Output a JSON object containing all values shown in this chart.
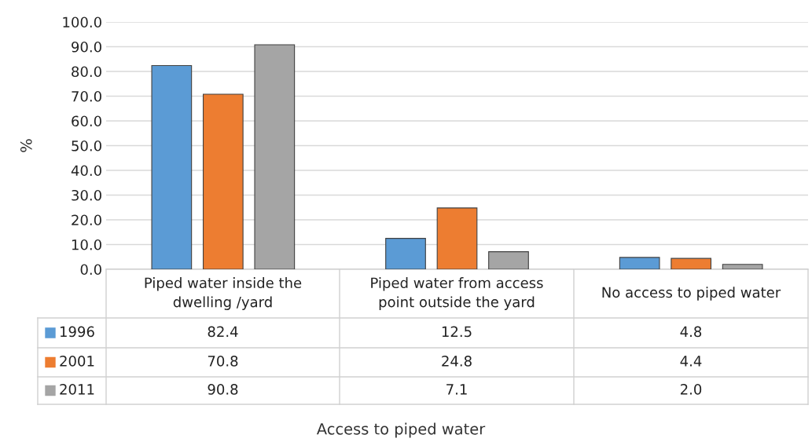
{
  "chart_data": {
    "type": "bar",
    "ylabel": "%",
    "annotations": [
      "Access to piped water"
    ],
    "categories": [
      "Piped water inside the\ndwelling /yard",
      "Piped water from access\npoint outside the yard",
      "No access to piped water"
    ],
    "series": [
      {
        "name": "1996",
        "color": "#5b9bd5",
        "values": [
          82.4,
          12.5,
          4.8
        ],
        "value_labels": [
          "82.4",
          "12.5",
          "4.8"
        ]
      },
      {
        "name": "2001",
        "color": "#ed7d31",
        "values": [
          70.8,
          24.8,
          4.4
        ],
        "value_labels": [
          "70.8",
          "24.8",
          "4.4"
        ]
      },
      {
        "name": "2011",
        "color": "#a5a5a5",
        "values": [
          90.8,
          7.1,
          2.0
        ],
        "value_labels": [
          "90.8",
          "7.1",
          "2.0"
        ]
      }
    ],
    "ylim": [
      0,
      100
    ],
    "yticks": [
      {
        "value": 0,
        "label": "0.0"
      },
      {
        "value": 10,
        "label": "10.0"
      },
      {
        "value": 20,
        "label": "20.0"
      },
      {
        "value": 30,
        "label": "30.0"
      },
      {
        "value": 40,
        "label": "40.0"
      },
      {
        "value": 50,
        "label": "50.0"
      },
      {
        "value": 60,
        "label": "60.0"
      },
      {
        "value": 70,
        "label": "70.0"
      },
      {
        "value": 80,
        "label": "80.0"
      },
      {
        "value": 90,
        "label": "90.0"
      },
      {
        "value": 100,
        "label": "100.0"
      }
    ],
    "grid": "y",
    "legend": "bottom"
  }
}
